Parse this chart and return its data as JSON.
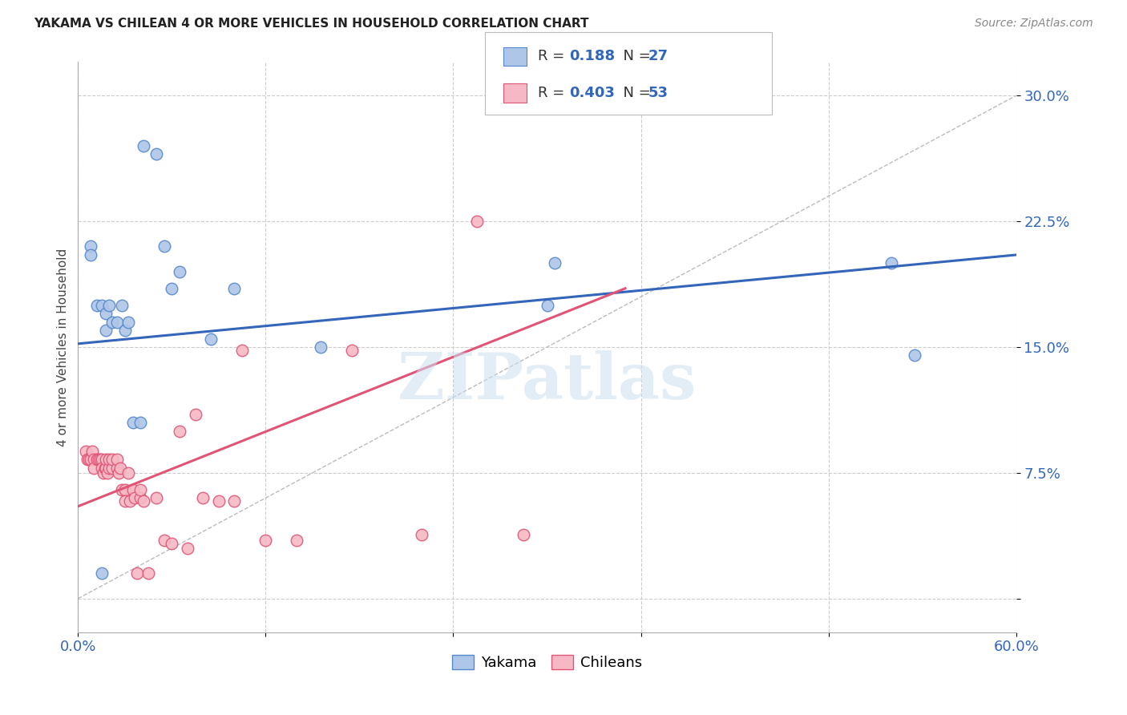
{
  "title": "YAKAMA VS CHILEAN 4 OR MORE VEHICLES IN HOUSEHOLD CORRELATION CHART",
  "source": "Source: ZipAtlas.com",
  "ylabel": "4 or more Vehicles in Household",
  "xlim": [
    0.0,
    0.6
  ],
  "ylim": [
    -0.02,
    0.32
  ],
  "xtick_positions": [
    0.0,
    0.12,
    0.24,
    0.36,
    0.48,
    0.6
  ],
  "xticklabels": [
    "0.0%",
    "",
    "",
    "",
    "",
    "60.0%"
  ],
  "ytick_positions": [
    0.0,
    0.075,
    0.15,
    0.225,
    0.3
  ],
  "ytick_labels": [
    "",
    "7.5%",
    "15.0%",
    "22.5%",
    "30.0%"
  ],
  "watermark": "ZIPatlas",
  "yakama_color": "#aec6e8",
  "chilean_color": "#f5b8c4",
  "yakama_edge": "#5588cc",
  "chilean_edge": "#e05575",
  "trend_yakama_color": "#3366bb",
  "trend_chilean_color": "#e05575",
  "diagonal_color": "#bbbbbb",
  "yakama_R": "0.188",
  "yakama_N": "27",
  "chilean_R": "0.403",
  "chilean_N": "53",
  "yakama_scatter_x": [
    0.008,
    0.008,
    0.012,
    0.015,
    0.018,
    0.018,
    0.02,
    0.022,
    0.025,
    0.028,
    0.03,
    0.032,
    0.035,
    0.04,
    0.042,
    0.05,
    0.055,
    0.06,
    0.065,
    0.085,
    0.1,
    0.155,
    0.3,
    0.305,
    0.015,
    0.52,
    0.535
  ],
  "yakama_scatter_y": [
    0.21,
    0.205,
    0.175,
    0.175,
    0.16,
    0.17,
    0.175,
    0.165,
    0.165,
    0.175,
    0.16,
    0.165,
    0.105,
    0.105,
    0.27,
    0.265,
    0.21,
    0.185,
    0.195,
    0.155,
    0.185,
    0.15,
    0.175,
    0.2,
    0.015,
    0.2,
    0.145
  ],
  "chilean_scatter_x": [
    0.005,
    0.006,
    0.007,
    0.008,
    0.009,
    0.01,
    0.01,
    0.012,
    0.013,
    0.014,
    0.015,
    0.015,
    0.016,
    0.017,
    0.018,
    0.018,
    0.019,
    0.02,
    0.02,
    0.022,
    0.022,
    0.025,
    0.025,
    0.026,
    0.027,
    0.028,
    0.03,
    0.03,
    0.032,
    0.033,
    0.035,
    0.036,
    0.038,
    0.04,
    0.04,
    0.042,
    0.045,
    0.05,
    0.055,
    0.06,
    0.065,
    0.07,
    0.075,
    0.08,
    0.09,
    0.1,
    0.105,
    0.12,
    0.14,
    0.175,
    0.22,
    0.255,
    0.285
  ],
  "chilean_scatter_y": [
    0.088,
    0.083,
    0.083,
    0.083,
    0.088,
    0.083,
    0.078,
    0.083,
    0.083,
    0.083,
    0.083,
    0.078,
    0.075,
    0.078,
    0.078,
    0.083,
    0.075,
    0.078,
    0.083,
    0.078,
    0.083,
    0.078,
    0.083,
    0.075,
    0.078,
    0.065,
    0.065,
    0.058,
    0.075,
    0.058,
    0.065,
    0.06,
    0.015,
    0.06,
    0.065,
    0.058,
    0.015,
    0.06,
    0.035,
    0.033,
    0.1,
    0.03,
    0.11,
    0.06,
    0.058,
    0.058,
    0.148,
    0.035,
    0.035,
    0.148,
    0.038,
    0.225,
    0.038
  ]
}
